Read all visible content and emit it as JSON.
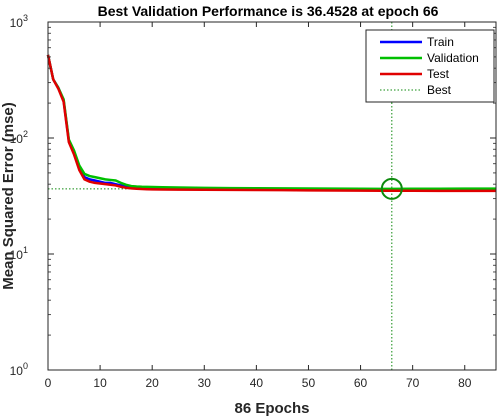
{
  "chart_data": {
    "type": "line",
    "title": "Best Validation Performance is 36.4528 at epoch 66",
    "xlabel": "86 Epochs",
    "ylabel": "Mean Squared Error  (mse)",
    "xlim": [
      0,
      86
    ],
    "ylim": [
      1,
      1000
    ],
    "yscale": "log",
    "grid": false,
    "legend_position": "top-right",
    "xticks": [
      "0",
      "10",
      "20",
      "30",
      "40",
      "50",
      "60",
      "70",
      "80"
    ],
    "yticks": [
      {
        "base": "10",
        "exp": "0"
      },
      {
        "base": "10",
        "exp": "1"
      },
      {
        "base": "10",
        "exp": "2"
      },
      {
        "base": "10",
        "exp": "3"
      }
    ],
    "best": {
      "epoch": 66,
      "value": 36.4528,
      "label": "Best",
      "color": "#0e8a0e"
    },
    "x": [
      0,
      1,
      2,
      3,
      4,
      5,
      6,
      7,
      8,
      9,
      10,
      11,
      12,
      13,
      14,
      15,
      16,
      17,
      18,
      19,
      20,
      22,
      25,
      30,
      35,
      40,
      45,
      50,
      55,
      60,
      65,
      66,
      70,
      75,
      80,
      86
    ],
    "series": [
      {
        "name": "Train",
        "color": "#0000ff",
        "values": [
          520,
          320,
          270,
          210,
          95,
          75,
          55,
          46,
          44,
          43,
          42,
          41,
          41,
          40,
          39,
          38,
          37.5,
          37.2,
          37,
          36.9,
          36.8,
          36.7,
          36.6,
          36.5,
          36.4,
          36.3,
          36.2,
          36.1,
          36.0,
          36.0,
          35.9,
          35.9,
          35.9,
          35.8,
          35.8,
          35.8
        ]
      },
      {
        "name": "Validation",
        "color": "#00c000",
        "values": [
          520,
          320,
          270,
          215,
          97,
          78,
          58,
          49,
          47,
          46,
          45,
          44,
          43.5,
          43,
          41,
          39.5,
          38.5,
          38.2,
          38,
          37.9,
          37.8,
          37.6,
          37.4,
          37.2,
          37.0,
          36.9,
          36.8,
          36.7,
          36.6,
          36.5,
          36.46,
          36.4528,
          36.5,
          36.55,
          36.6,
          36.6
        ]
      },
      {
        "name": "Test",
        "color": "#e00000",
        "values": [
          520,
          320,
          265,
          205,
          92,
          72,
          53,
          44,
          42,
          41,
          40.5,
          40,
          39.5,
          39,
          38,
          37.2,
          36.8,
          36.5,
          36.3,
          36.2,
          36.1,
          36.0,
          35.9,
          35.8,
          35.7,
          35.6,
          35.5,
          35.4,
          35.3,
          35.2,
          35.1,
          35.1,
          35.1,
          35.0,
          35.0,
          35.0
        ]
      }
    ]
  }
}
